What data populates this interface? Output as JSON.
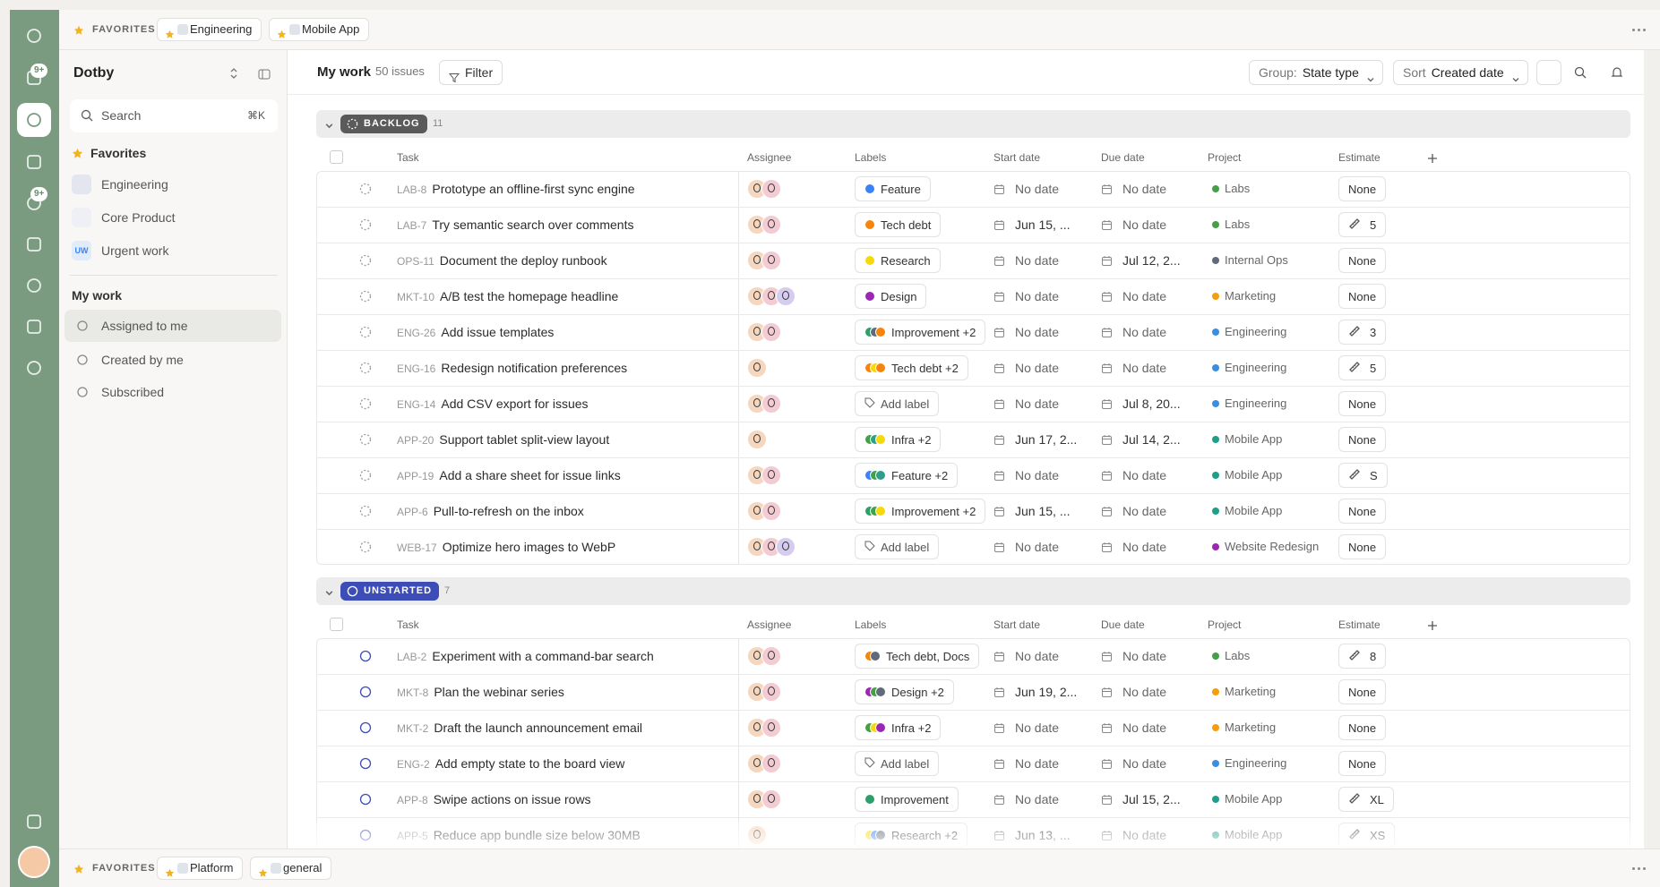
{
  "top_bar": {
    "favorites_label": "FAVORITES",
    "tabs": [
      "Engineering",
      "Mobile App"
    ]
  },
  "rail": {
    "badges": [
      "9+",
      "9+"
    ]
  },
  "sidebar": {
    "workspace": "Dotby",
    "search": "Search",
    "shortcut": "⌘K",
    "favorites_heading": "Favorites",
    "favorites": [
      {
        "label": "Engineering"
      },
      {
        "label": "Core Product"
      },
      {
        "label": "Urgent work",
        "icon_text": "UW"
      }
    ],
    "my_work_heading": "My work",
    "my_work": [
      "Assigned to me",
      "Created by me",
      "Subscribed"
    ]
  },
  "header": {
    "title": "My work",
    "count": "50 issues",
    "filter": "Filter",
    "group_label": "Group:",
    "group_value": "State type",
    "sort_label": "Sort",
    "sort_value": "Created date"
  },
  "table": {
    "columns": [
      "Task",
      "Assignee",
      "Labels",
      "Start date",
      "Due date",
      "Project",
      "Estimate"
    ],
    "no_date": "No date",
    "no_label": "Add label",
    "no_estimate": "None",
    "groups": [
      {
        "name": "BACKLOG",
        "count": 11,
        "color": "#5a5a5a",
        "rows": [
          {
            "id": "LAB-8",
            "title": "Prototype an offline-first sync engine",
            "assignees": 2,
            "label": "Feature",
            "label_colors": [
              "#3b82f6"
            ],
            "start": null,
            "due": null,
            "project": "Labs",
            "project_color": "#43a047",
            "estimate": null
          },
          {
            "id": "LAB-7",
            "title": "Try semantic search over comments",
            "assignees": 2,
            "label": "Tech debt",
            "label_colors": [
              "#f5860b"
            ],
            "start": "Jun 15, ...",
            "due": null,
            "project": "Labs",
            "project_color": "#43a047",
            "estimate": "5"
          },
          {
            "id": "OPS-11",
            "title": "Document the deploy runbook",
            "assignees": 2,
            "label": "Research",
            "label_colors": [
              "#f5d90b"
            ],
            "start": null,
            "due": "Jul 12, 2...",
            "project": "Internal Ops",
            "project_color": "#5f6b7a",
            "estimate": null
          },
          {
            "id": "MKT-10",
            "title": "A/B test the homepage headline",
            "assignees": 3,
            "label": "Design",
            "label_colors": [
              "#9c27b0"
            ],
            "start": null,
            "due": null,
            "project": "Marketing",
            "project_color": "#f59e0b",
            "estimate": null
          },
          {
            "id": "ENG-26",
            "title": "Add issue templates",
            "assignees": 2,
            "label": "Improvement +2",
            "label_colors": [
              "#2e9e6a",
              "#5f6b7a",
              "#f5860b"
            ],
            "start": null,
            "due": null,
            "project": "Engineering",
            "project_color": "#3b8fe0",
            "estimate": "3"
          },
          {
            "id": "ENG-16",
            "title": "Redesign notification preferences",
            "assignees": 1,
            "label": "Tech debt +2",
            "label_colors": [
              "#f5860b",
              "#f5d90b",
              "#f5860b"
            ],
            "start": null,
            "due": null,
            "project": "Engineering",
            "project_color": "#3b8fe0",
            "estimate": "5"
          },
          {
            "id": "ENG-14",
            "title": "Add CSV export for issues",
            "assignees": 2,
            "label": null,
            "label_colors": [],
            "start": null,
            "due": "Jul 8, 20...",
            "project": "Engineering",
            "project_color": "#3b8fe0",
            "estimate": null
          },
          {
            "id": "APP-20",
            "title": "Support tablet split-view layout",
            "assignees": 1,
            "label": "Infra +2",
            "label_colors": [
              "#43a047",
              "#2e9e8a",
              "#f5d90b"
            ],
            "start": "Jun 17, 2...",
            "due": "Jul 14, 2...",
            "project": "Mobile App",
            "project_color": "#1f9e8a",
            "estimate": null
          },
          {
            "id": "APP-19",
            "title": "Add a share sheet for issue links",
            "assignees": 2,
            "label": "Feature +2",
            "label_colors": [
              "#3b82f6",
              "#43a047",
              "#2e9e8a"
            ],
            "start": null,
            "due": null,
            "project": "Mobile App",
            "project_color": "#1f9e8a",
            "estimate": "S"
          },
          {
            "id": "APP-6",
            "title": "Pull-to-refresh on the inbox",
            "assignees": 2,
            "label": "Improvement +2",
            "label_colors": [
              "#2e9e6a",
              "#43a047",
              "#f5d90b"
            ],
            "start": "Jun 15, ...",
            "due": null,
            "project": "Mobile App",
            "project_color": "#1f9e8a",
            "estimate": null
          },
          {
            "id": "WEB-17",
            "title": "Optimize hero images to WebP",
            "assignees": 3,
            "label": null,
            "label_colors": [],
            "start": null,
            "due": null,
            "project": "Website Redesign",
            "project_color": "#9c27b0",
            "estimate": null
          }
        ]
      },
      {
        "name": "UNSTARTED",
        "count": 7,
        "color": "#3d4db7",
        "rows": [
          {
            "id": "LAB-2",
            "title": "Experiment with a command-bar search",
            "assignees": 2,
            "label": "Tech debt, Docs",
            "label_colors": [
              "#f5860b",
              "#5f6b7a"
            ],
            "start": null,
            "due": null,
            "project": "Labs",
            "project_color": "#43a047",
            "estimate": "8"
          },
          {
            "id": "MKT-8",
            "title": "Plan the webinar series",
            "assignees": 2,
            "label": "Design +2",
            "label_colors": [
              "#9c27b0",
              "#43a047",
              "#5f6b7a"
            ],
            "start": "Jun 19, 2...",
            "due": null,
            "project": "Marketing",
            "project_color": "#f59e0b",
            "estimate": null
          },
          {
            "id": "MKT-2",
            "title": "Draft the launch announcement email",
            "assignees": 2,
            "label": "Infra +2",
            "label_colors": [
              "#43a047",
              "#f5d90b",
              "#9c27b0"
            ],
            "start": null,
            "due": null,
            "project": "Marketing",
            "project_color": "#f59e0b",
            "estimate": null
          },
          {
            "id": "ENG-2",
            "title": "Add empty state to the board view",
            "assignees": 2,
            "label": null,
            "label_colors": [],
            "start": null,
            "due": null,
            "project": "Engineering",
            "project_color": "#3b8fe0",
            "estimate": null
          },
          {
            "id": "APP-8",
            "title": "Swipe actions on issue rows",
            "assignees": 2,
            "label": "Improvement",
            "label_colors": [
              "#2e9e6a"
            ],
            "start": null,
            "due": "Jul 15, 2...",
            "project": "Mobile App",
            "project_color": "#1f9e8a",
            "estimate": "XL"
          },
          {
            "id": "APP-5",
            "title": "Reduce app bundle size below 30MB",
            "assignees": 1,
            "label": "Research +2",
            "label_colors": [
              "#f5d90b",
              "#3b82f6",
              "#5f6b7a"
            ],
            "start": "Jun 13, ...",
            "due": null,
            "project": "Mobile App",
            "project_color": "#1f9e8a",
            "estimate": "XS"
          }
        ]
      }
    ]
  },
  "bottom_bar": {
    "favorites_label": "FAVORITES",
    "tabs": [
      "Platform",
      "general"
    ]
  }
}
